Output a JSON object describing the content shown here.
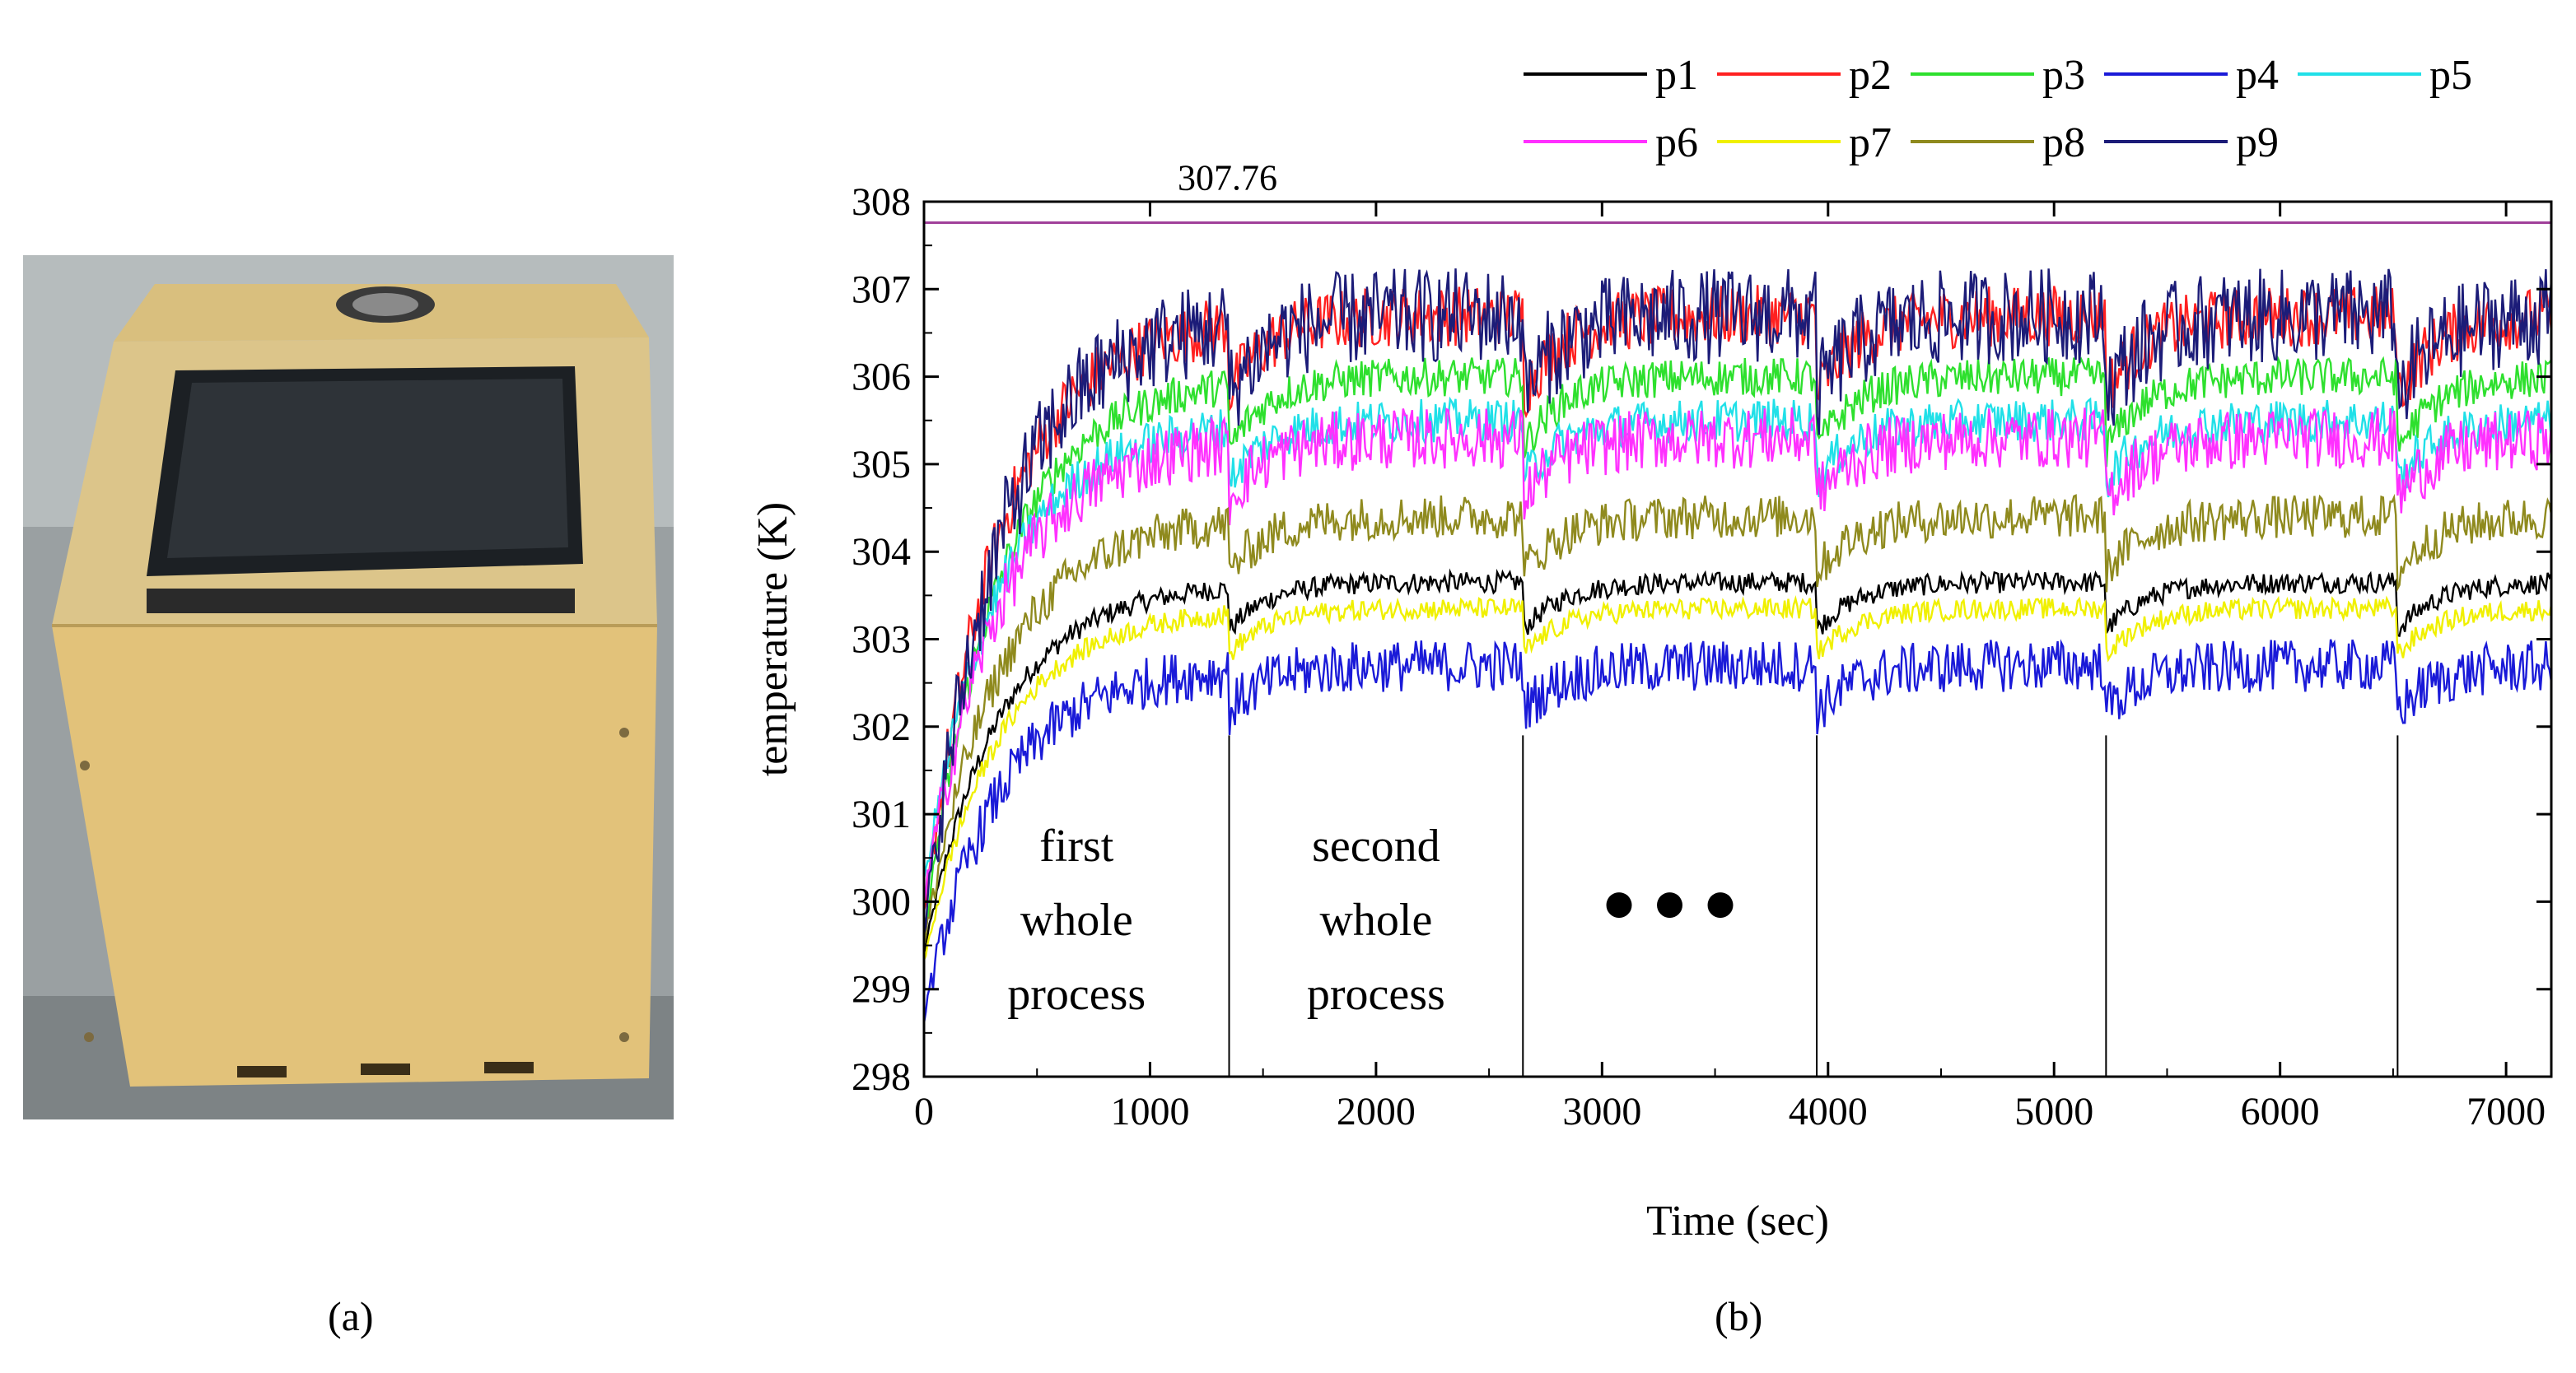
{
  "panel_a": {
    "caption": "(a)"
  },
  "panel_b": {
    "caption": "(b)"
  },
  "chart_data": {
    "type": "line",
    "xlabel": "Time (sec)",
    "ylabel": "temperature (K)",
    "xlim": [
      0,
      7200
    ],
    "ylim": [
      298,
      308
    ],
    "xticks": [
      0,
      1000,
      2000,
      3000,
      4000,
      5000,
      6000,
      7000
    ],
    "yticks": [
      298,
      299,
      300,
      301,
      302,
      303,
      304,
      305,
      306,
      307,
      308
    ],
    "reference_line": {
      "value": 307.76,
      "label": "307.76",
      "color": "#a0409a"
    },
    "process_boundaries": [
      1350,
      2650,
      3950,
      5230,
      6520
    ],
    "annotations": [
      {
        "lines": [
          "first",
          "whole",
          "process"
        ]
      },
      {
        "lines": [
          "second",
          "whole",
          "process"
        ]
      },
      {
        "text": "● ● ●"
      }
    ],
    "legend_position": "top-right",
    "series": [
      {
        "name": "p1",
        "color": "#000000",
        "start": 299.4,
        "plateau": 303.65,
        "noise": 0.12
      },
      {
        "name": "p2",
        "color": "#ff2020",
        "start": 299.8,
        "plateau": 306.7,
        "noise": 0.35
      },
      {
        "name": "p3",
        "color": "#2ee02e",
        "start": 299.6,
        "plateau": 306.0,
        "noise": 0.22
      },
      {
        "name": "p4",
        "color": "#1a1ad8",
        "start": 298.7,
        "plateau": 302.7,
        "noise": 0.3
      },
      {
        "name": "p5",
        "color": "#20e0e8",
        "start": 300.2,
        "plateau": 305.5,
        "noise": 0.25
      },
      {
        "name": "p6",
        "color": "#ff30ff",
        "start": 300.0,
        "plateau": 305.3,
        "noise": 0.35
      },
      {
        "name": "p7",
        "color": "#f0f000",
        "start": 299.3,
        "plateau": 303.35,
        "noise": 0.12
      },
      {
        "name": "p8",
        "color": "#8f8a1e",
        "start": 299.5,
        "plateau": 304.4,
        "noise": 0.25
      },
      {
        "name": "p9",
        "color": "#1c1c78",
        "start": 299.6,
        "plateau": 306.7,
        "noise": 0.55
      }
    ]
  }
}
